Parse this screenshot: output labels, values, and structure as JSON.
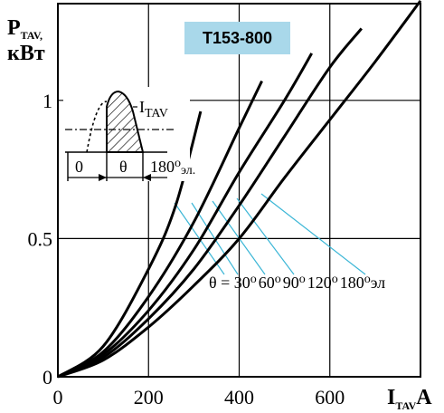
{
  "chart_data": {
    "type": "line",
    "title": "T153-800",
    "ylabel": {
      "main": "P",
      "sub": "TAV,",
      "unit": "кВт"
    },
    "xlabel": {
      "main": "I",
      "sub": "TAV",
      "unit": "A"
    },
    "xlim": [
      0,
      800
    ],
    "ylim": [
      0,
      1.35
    ],
    "x_ticks": [
      "0",
      "200",
      "400",
      "600"
    ],
    "y_ticks": [
      "0",
      "0.5",
      "1"
    ],
    "grid": true,
    "series": [
      {
        "name": "30",
        "x": [
          0,
          100,
          200,
          260,
          315
        ],
        "y": [
          0,
          0.11,
          0.39,
          0.62,
          0.96
        ]
      },
      {
        "name": "60",
        "x": [
          0,
          100,
          200,
          300,
          400,
          450
        ],
        "y": [
          0,
          0.09,
          0.29,
          0.56,
          0.9,
          1.07
        ]
      },
      {
        "name": "90",
        "x": [
          0,
          100,
          200,
          300,
          400,
          500,
          560
        ],
        "y": [
          0,
          0.08,
          0.24,
          0.46,
          0.74,
          1.0,
          1.17
        ]
      },
      {
        "name": "120",
        "x": [
          0,
          100,
          200,
          300,
          400,
          500,
          600,
          670
        ],
        "y": [
          0,
          0.07,
          0.21,
          0.39,
          0.62,
          0.87,
          1.12,
          1.26
        ]
      },
      {
        "name": "180",
        "x": [
          0,
          100,
          200,
          300,
          400,
          500,
          600,
          700,
          800
        ],
        "y": [
          0,
          0.06,
          0.18,
          0.33,
          0.5,
          0.72,
          0.93,
          1.14,
          1.36
        ]
      }
    ],
    "legend": {
      "prefix": "θ = ",
      "items": [
        "30",
        "60",
        "90",
        "120",
        "180"
      ],
      "degree": "o",
      "suffix": "эл"
    },
    "inset": {
      "label_main": "I",
      "label_sub": "TAV",
      "seg1": "0",
      "seg2": "θ",
      "seg3_main": "180",
      "seg3_deg": "o",
      "seg3_suffix": "эл."
    },
    "colors": {
      "curves": "#000000",
      "callouts": "#3bb6d6",
      "title_bg": "#a9d8ea"
    }
  }
}
